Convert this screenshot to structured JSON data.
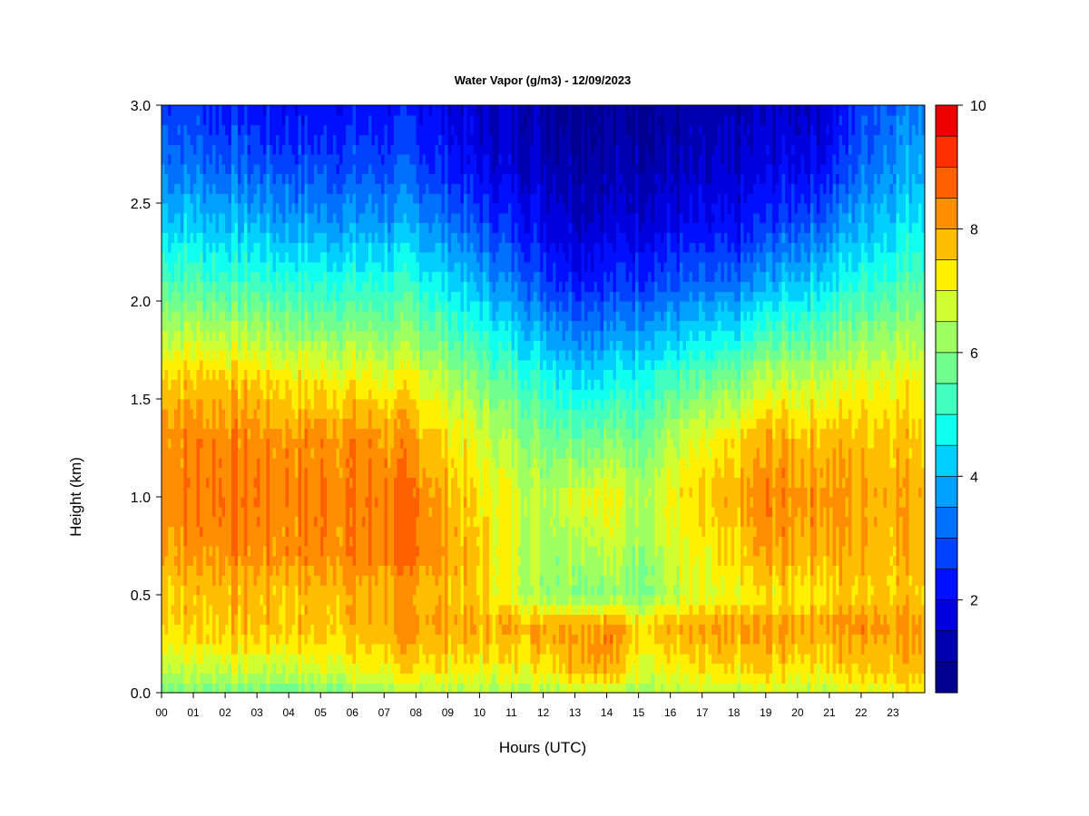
{
  "chart_data": {
    "type": "heatmap",
    "title": "Water Vapor (g/m3) - 12/09/2023",
    "xlabel": "Hours (UTC)",
    "ylabel": "Height (km)",
    "x_ticks": [
      "00",
      "01",
      "02",
      "03",
      "04",
      "05",
      "06",
      "07",
      "08",
      "09",
      "10",
      "11",
      "12",
      "13",
      "14",
      "15",
      "16",
      "17",
      "18",
      "19",
      "20",
      "21",
      "22",
      "23"
    ],
    "y_ticks": [
      "0.0",
      "0.5",
      "1.0",
      "1.5",
      "2.0",
      "2.5",
      "3.0"
    ],
    "xlim": [
      0,
      24
    ],
    "ylim": [
      0,
      3.0
    ],
    "colorbar": {
      "range": [
        0.5,
        10
      ],
      "step": 0.5,
      "ticks": [
        "2",
        "4",
        "6",
        "8",
        "10"
      ],
      "colors": [
        "#00008f",
        "#0000af",
        "#0000df",
        "#0010ff",
        "#0040ff",
        "#0070ff",
        "#00a0ff",
        "#00cfff",
        "#10ffef",
        "#40ffbf",
        "#70ff8f",
        "#a0ff60",
        "#cfff30",
        "#ffef00",
        "#ffbf00",
        "#ff8f00",
        "#ff6000",
        "#ff3000",
        "#ef0000",
        "#bf0000",
        "#8f0000"
      ]
    },
    "profile_heights_km": [
      0.0,
      0.1,
      0.25,
      0.35,
      0.5,
      0.7,
      1.0,
      1.3,
      1.6,
      1.85,
      2.1,
      2.4,
      2.7,
      3.0
    ],
    "profiles": [
      {
        "hour": 0,
        "values": [
          5.8,
          6.6,
          7.3,
          7.6,
          7.6,
          8.0,
          8.4,
          8.3,
          7.6,
          6.5,
          5.4,
          4.3,
          3.4,
          2.8
        ]
      },
      {
        "hour": 2,
        "values": [
          5.9,
          6.6,
          7.4,
          7.7,
          7.8,
          8.3,
          8.5,
          8.4,
          7.7,
          6.5,
          5.3,
          4.1,
          3.1,
          2.4
        ]
      },
      {
        "hour": 4,
        "values": [
          5.7,
          6.5,
          7.4,
          7.7,
          7.7,
          8.2,
          8.4,
          8.2,
          7.3,
          6.1,
          5.0,
          3.8,
          2.8,
          2.1
        ]
      },
      {
        "hour": 6,
        "values": [
          6.0,
          6.9,
          7.5,
          7.8,
          7.9,
          8.4,
          8.5,
          8.3,
          7.2,
          6.0,
          4.9,
          3.7,
          2.8,
          2.2
        ]
      },
      {
        "hour": 8,
        "values": [
          6.6,
          7.3,
          7.9,
          8.2,
          7.9,
          8.5,
          8.5,
          8.0,
          7.0,
          5.9,
          5.0,
          3.8,
          2.8,
          2.2
        ]
      },
      {
        "hour": 10,
        "values": [
          6.3,
          7.0,
          7.6,
          7.9,
          7.5,
          7.6,
          7.3,
          6.8,
          5.9,
          4.9,
          3.9,
          2.8,
          1.9,
          1.5
        ]
      },
      {
        "hour": 12,
        "values": [
          6.6,
          7.2,
          7.9,
          8.0,
          6.3,
          6.3,
          6.6,
          5.9,
          5.0,
          3.9,
          2.9,
          2.0,
          1.5,
          1.2
        ]
      },
      {
        "hour": 13,
        "values": [
          6.8,
          7.8,
          8.3,
          8.2,
          6.1,
          6.5,
          7.0,
          5.8,
          4.6,
          3.5,
          2.4,
          1.6,
          1.2,
          0.9
        ]
      },
      {
        "hour": 14,
        "values": [
          6.6,
          7.9,
          8.4,
          8.2,
          6.0,
          6.6,
          7.2,
          5.9,
          4.6,
          3.5,
          2.5,
          1.7,
          1.2,
          1.0
        ]
      },
      {
        "hour": 15,
        "values": [
          6.3,
          6.9,
          7.4,
          7.6,
          6.0,
          6.2,
          6.5,
          5.8,
          4.9,
          3.8,
          2.7,
          1.8,
          1.3,
          1.0
        ]
      },
      {
        "hour": 16,
        "values": [
          6.4,
          7.0,
          7.6,
          7.8,
          6.5,
          6.7,
          7.1,
          6.5,
          5.2,
          4.0,
          2.9,
          1.9,
          1.3,
          1.0
        ]
      },
      {
        "hour": 18,
        "values": [
          6.5,
          7.2,
          7.8,
          8.0,
          6.9,
          7.3,
          7.7,
          7.2,
          5.8,
          4.4,
          3.1,
          2.0,
          1.4,
          1.1
        ]
      },
      {
        "hour": 19,
        "values": [
          6.7,
          7.4,
          7.9,
          8.1,
          7.3,
          8.0,
          8.4,
          7.9,
          6.6,
          5.2,
          3.8,
          2.6,
          1.8,
          1.5
        ]
      },
      {
        "hour": 21,
        "values": [
          6.6,
          7.3,
          7.8,
          8.1,
          7.4,
          7.9,
          8.2,
          7.8,
          6.7,
          5.6,
          4.5,
          3.2,
          2.2,
          1.7
        ]
      },
      {
        "hour": 22,
        "values": [
          7.0,
          7.6,
          8.0,
          8.3,
          7.6,
          7.9,
          8.0,
          7.7,
          7.0,
          6.0,
          5.0,
          4.0,
          3.2,
          2.7
        ]
      },
      {
        "hour": 24,
        "values": [
          7.4,
          7.8,
          8.1,
          8.2,
          7.7,
          7.9,
          8.0,
          7.8,
          7.2,
          6.4,
          5.6,
          4.7,
          4.1,
          3.7
        ]
      }
    ]
  }
}
